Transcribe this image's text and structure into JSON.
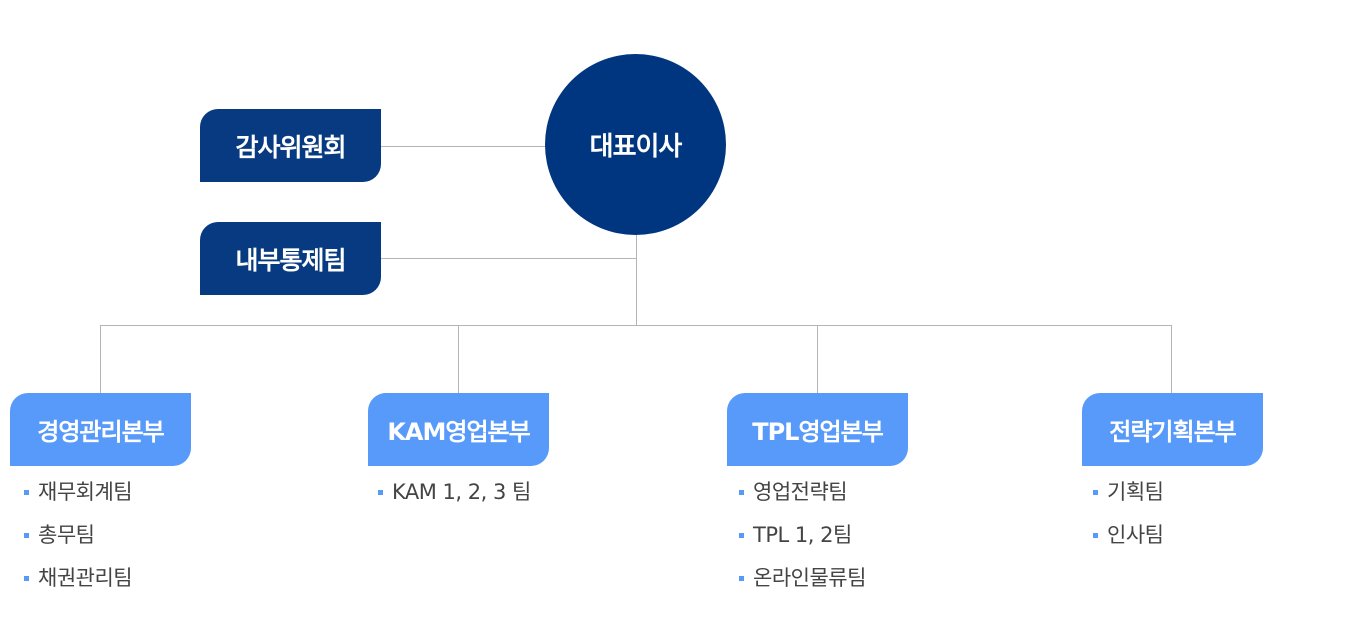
{
  "ceo": {
    "label": "대표이사"
  },
  "staff": [
    {
      "label": "감사위원회"
    },
    {
      "label": "내부통제팀"
    }
  ],
  "divisions": [
    {
      "label": "경영관리본부",
      "teams": [
        "재무회계팀",
        "총무팀",
        "채권관리팀"
      ]
    },
    {
      "label": "KAM영업본부",
      "teams": [
        "KAM 1, 2, 3 팀"
      ]
    },
    {
      "label": "TPL영업본부",
      "teams": [
        "영업전략팀",
        "TPL 1, 2팀",
        "온라인물류팀"
      ]
    },
    {
      "label": "전략기획본부",
      "teams": [
        "기획팀",
        "인사팀"
      ]
    }
  ],
  "colors": {
    "ceo": "#003580",
    "staff": "#073a80",
    "division": "#579af9",
    "connector": "#b5b5b5",
    "team_text": "#444444"
  }
}
